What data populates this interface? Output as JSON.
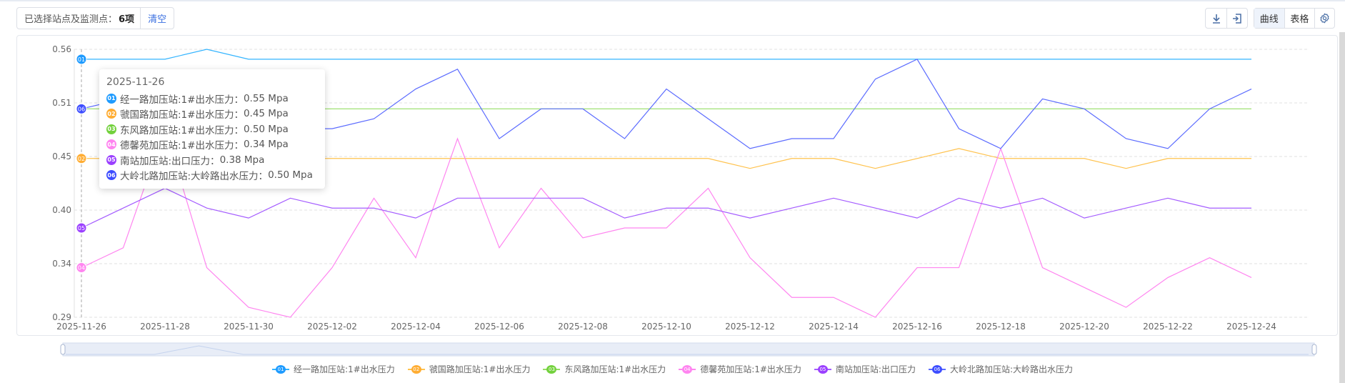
{
  "toolbar": {
    "selected_label": "已选择站点及监测点：",
    "selected_count": "6项",
    "clear_label": "清空",
    "download_icon": "download-icon",
    "export_icon": "export-icon",
    "curve_label": "曲线",
    "table_label": "表格",
    "settings_icon": "gear-icon",
    "active_view": "曲线"
  },
  "tooltip": {
    "date": "2025-11-26",
    "rows": [
      {
        "badge": "01",
        "label": "经一路加压站:1#出水压力：",
        "value": "0.55 Mpa"
      },
      {
        "badge": "02",
        "label": "虢国路加压站:1#出水压力：",
        "value": "0.45 Mpa"
      },
      {
        "badge": "03",
        "label": "东风路加压站:1#出水压力：",
        "value": "0.50 Mpa"
      },
      {
        "badge": "04",
        "label": "德馨苑加压站:1#出水压力：",
        "value": "0.34 Mpa"
      },
      {
        "badge": "05",
        "label": "南站加压站:出口压力：",
        "value": "0.38 Mpa"
      },
      {
        "badge": "06",
        "label": "大岭北路加压站:大岭路出水压力：",
        "value": "0.50 Mpa"
      }
    ]
  },
  "chart_data": {
    "type": "line",
    "title": "",
    "xlabel": "",
    "ylabel": "",
    "unit": "Mpa",
    "ylim": [
      0.29,
      0.56
    ],
    "y_tick_labels": [
      "0.56",
      "0.51",
      "0.45",
      "0.40",
      "0.34",
      "0.29"
    ],
    "x_tick_labels": [
      "2025-11-26",
      "2025-11-28",
      "2025-11-30",
      "2025-12-02",
      "2025-12-04",
      "2025-12-06",
      "2025-12-08",
      "2025-12-10",
      "2025-12-12",
      "2025-12-14",
      "2025-12-16",
      "2025-12-18",
      "2025-12-20",
      "2025-12-22",
      "2025-12-24"
    ],
    "x": [
      "2025-11-26",
      "2025-11-27",
      "2025-11-28",
      "2025-11-29",
      "2025-11-30",
      "2025-12-01",
      "2025-12-02",
      "2025-12-03",
      "2025-12-04",
      "2025-12-05",
      "2025-12-06",
      "2025-12-07",
      "2025-12-08",
      "2025-12-09",
      "2025-12-10",
      "2025-12-11",
      "2025-12-12",
      "2025-12-13",
      "2025-12-14",
      "2025-12-15",
      "2025-12-16",
      "2025-12-17",
      "2025-12-18",
      "2025-12-19",
      "2025-12-20",
      "2025-12-21",
      "2025-12-22",
      "2025-12-23",
      "2025-12-24"
    ],
    "grid": true,
    "legend_position": "bottom",
    "series": [
      {
        "badge": "01",
        "name": "经一路加压站:1#出水压力",
        "color": "#1e9bff",
        "line": "#33b4ff",
        "values": [
          0.55,
          0.55,
          0.55,
          0.56,
          0.55,
          0.55,
          0.55,
          0.55,
          0.55,
          0.55,
          0.55,
          0.55,
          0.55,
          0.55,
          0.55,
          0.55,
          0.55,
          0.55,
          0.55,
          0.55,
          0.55,
          0.55,
          0.55,
          0.55,
          0.55,
          0.55,
          0.55,
          0.55,
          0.55
        ]
      },
      {
        "badge": "02",
        "name": "虢国路加压站:1#出水压力",
        "color": "#ffad33",
        "line": "#ffc24d",
        "values": [
          0.45,
          0.45,
          0.45,
          0.45,
          0.45,
          0.45,
          0.45,
          0.45,
          0.45,
          0.45,
          0.45,
          0.45,
          0.45,
          0.45,
          0.45,
          0.45,
          0.44,
          0.45,
          0.45,
          0.44,
          0.45,
          0.46,
          0.45,
          0.45,
          0.45,
          0.44,
          0.45,
          0.45,
          0.45
        ]
      },
      {
        "badge": "03",
        "name": "东风路加压站:1#出水压力",
        "color": "#73d13d",
        "line": "#95de64",
        "values": [
          0.5,
          0.5,
          0.5,
          0.5,
          0.5,
          0.5,
          0.5,
          0.5,
          0.5,
          0.5,
          0.5,
          0.5,
          0.5,
          0.5,
          0.5,
          0.5,
          0.5,
          0.5,
          0.5,
          0.5,
          0.5,
          0.5,
          0.5,
          0.5,
          0.5,
          0.5,
          0.5,
          0.5,
          0.5
        ]
      },
      {
        "badge": "04",
        "name": "德馨苑加压站:1#出水压力",
        "color": "#ff85f0",
        "line": "#ff85f0",
        "values": [
          0.34,
          0.36,
          0.48,
          0.34,
          0.3,
          0.29,
          0.34,
          0.41,
          0.35,
          0.47,
          0.36,
          0.42,
          0.37,
          0.38,
          0.38,
          0.42,
          0.35,
          0.31,
          0.31,
          0.29,
          0.34,
          0.34,
          0.46,
          0.34,
          0.32,
          0.3,
          0.33,
          0.35,
          0.33
        ]
      },
      {
        "badge": "05",
        "name": "南站加压站:出口压力",
        "color": "#9b40ff",
        "line": "#a45cff",
        "values": [
          0.38,
          0.4,
          0.42,
          0.4,
          0.39,
          0.41,
          0.4,
          0.4,
          0.39,
          0.41,
          0.41,
          0.41,
          0.41,
          0.39,
          0.4,
          0.4,
          0.39,
          0.4,
          0.41,
          0.4,
          0.39,
          0.41,
          0.4,
          0.41,
          0.39,
          0.4,
          0.41,
          0.4,
          0.4
        ]
      },
      {
        "badge": "06",
        "name": "大岭北路加压站:大岭路出水压力",
        "color": "#3d4dff",
        "line": "#5c6cff",
        "values": [
          0.5,
          0.51,
          0.5,
          0.49,
          0.48,
          0.48,
          0.48,
          0.49,
          0.52,
          0.54,
          0.47,
          0.5,
          0.5,
          0.47,
          0.52,
          0.49,
          0.46,
          0.47,
          0.47,
          0.53,
          0.55,
          0.48,
          0.46,
          0.51,
          0.5,
          0.47,
          0.46,
          0.5,
          0.52
        ]
      }
    ]
  }
}
